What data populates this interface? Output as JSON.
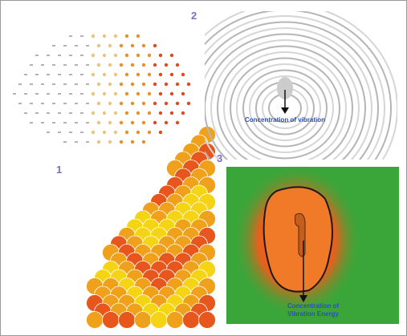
{
  "labels": {
    "panel_1": "1",
    "panel_2": "2",
    "panel_3": "3"
  },
  "annotations": {
    "vibration": "Concentration of vibration",
    "energy": [
      "Concentration of",
      "Vibration Energy"
    ]
  }
}
